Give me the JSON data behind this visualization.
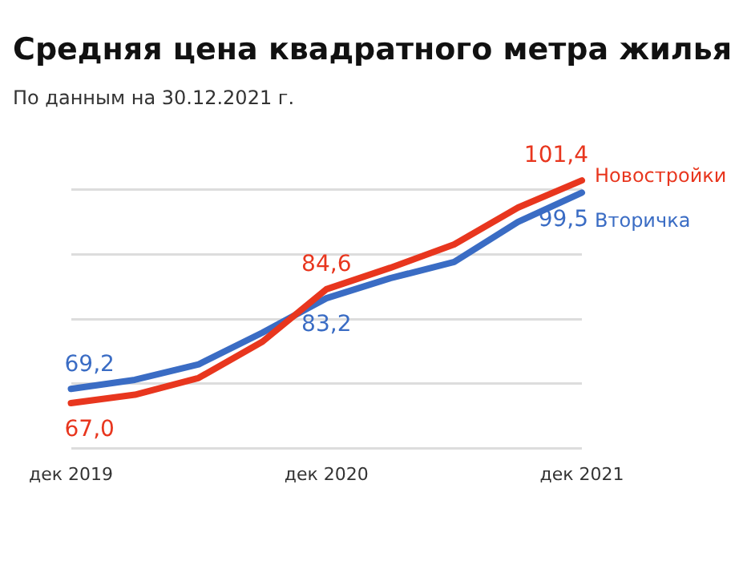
{
  "chart_data": {
    "type": "line",
    "title": "Средняя цена квадратного метра жилья",
    "subtitle": "По данным на 30.12.2021 г.",
    "categories": [
      "дек 2019",
      null,
      null,
      null,
      "дек 2020",
      null,
      null,
      null,
      "дек 2021"
    ],
    "series": [
      {
        "name": "Новостройки",
        "color": "#e8361e",
        "values": [
          67.0,
          68.3,
          70.9,
          76.5,
          84.6,
          87.9,
          91.5,
          97.2,
          101.4
        ],
        "value_labels": [
          "67,0",
          null,
          null,
          null,
          "84,6",
          null,
          null,
          null,
          "101,4"
        ]
      },
      {
        "name": "Вторичка",
        "color": "#3a6cc4",
        "values": [
          69.2,
          70.6,
          73.0,
          77.9,
          83.2,
          86.3,
          88.8,
          95.0,
          99.5
        ],
        "value_labels": [
          "69,2",
          null,
          null,
          null,
          "83,2",
          null,
          null,
          null,
          "99,5"
        ]
      }
    ],
    "yticks": [
      {
        "value": 60,
        "label": null
      },
      {
        "value": 70,
        "label": null
      },
      {
        "value": 80,
        "label": null
      },
      {
        "value": 90,
        "label": null
      },
      {
        "value": 100,
        "label": null
      }
    ],
    "tick_labels": "x",
    "grid": "y",
    "marker": "none",
    "line_style": "solid"
  }
}
